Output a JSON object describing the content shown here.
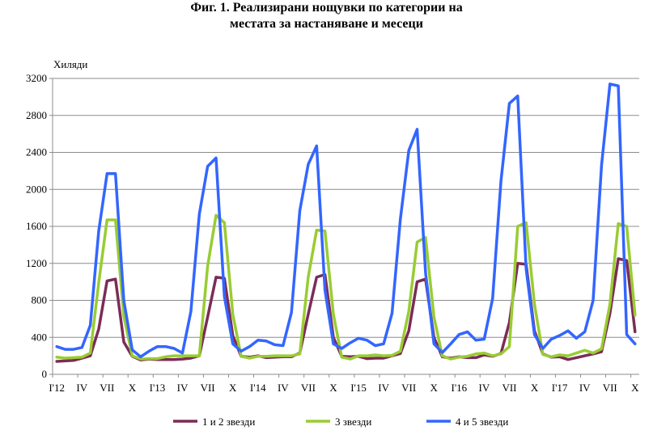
{
  "chart_data": {
    "type": "line",
    "title": "Фиг. 1. Реализирани нощувки по категории на",
    "subtitle": "местата за настаняване и месеци",
    "ylabel": "Хиляди",
    "xlabel": "",
    "ylim": [
      0,
      3200
    ],
    "yticks": [
      0,
      400,
      800,
      1200,
      1600,
      2000,
      2400,
      2800,
      3200
    ],
    "ytick_labels": [
      "0",
      "400",
      "800",
      "1200",
      "1600",
      "2000",
      "2400",
      "2800",
      "3200"
    ],
    "xtick_labels": [
      "I'12",
      "IV",
      "VII",
      "X",
      "I'13",
      "IV",
      "VII",
      "X",
      "I'14",
      "IV",
      "VII",
      "X",
      "I'15",
      "IV",
      "VII",
      "X",
      "I'16",
      "IV",
      "VII",
      "X",
      "I'17",
      "IV",
      "VII",
      "X"
    ],
    "x": [
      "I'12",
      "II'12",
      "III'12",
      "IV'12",
      "V'12",
      "VI'12",
      "VII'12",
      "VIII'12",
      "IX'12",
      "X'12",
      "XI'12",
      "XII'12",
      "I'13",
      "II'13",
      "III'13",
      "IV'13",
      "V'13",
      "VI'13",
      "VII'13",
      "VIII'13",
      "IX'13",
      "X'13",
      "XI'13",
      "XII'13",
      "I'14",
      "II'14",
      "III'14",
      "IV'14",
      "V'14",
      "VI'14",
      "VII'14",
      "VIII'14",
      "IX'14",
      "X'14",
      "XI'14",
      "XII'14",
      "I'15",
      "II'15",
      "III'15",
      "IV'15",
      "V'15",
      "VI'15",
      "VII'15",
      "VIII'15",
      "IX'15",
      "X'15",
      "XI'15",
      "XII'15",
      "I'16",
      "II'16",
      "III'16",
      "IV'16",
      "V'16",
      "VI'16",
      "VII'16",
      "VIII'16",
      "IX'16",
      "X'16",
      "XI'16",
      "XII'16",
      "I'17",
      "II'17",
      "III'17",
      "IV'17",
      "V'17",
      "VI'17",
      "VII'17",
      "VIII'17",
      "IX'17",
      "X'17"
    ],
    "grid": "horizontal",
    "legend_position": "bottom",
    "series": [
      {
        "name": "1 и 2 звезди",
        "color": "#7B2C57",
        "values": [
          140,
          145,
          150,
          175,
          200,
          490,
          1010,
          1030,
          350,
          195,
          155,
          165,
          160,
          160,
          160,
          165,
          175,
          200,
          620,
          1050,
          1040,
          420,
          195,
          185,
          200,
          180,
          185,
          190,
          190,
          230,
          650,
          1050,
          1080,
          400,
          195,
          190,
          195,
          170,
          175,
          175,
          200,
          225,
          470,
          1000,
          1030,
          400,
          190,
          175,
          190,
          180,
          180,
          210,
          195,
          225,
          560,
          1200,
          1190,
          470,
          220,
          185,
          190,
          160,
          180,
          200,
          220,
          245,
          660,
          1250,
          1230,
          460
        ]
      },
      {
        "name": "3 звезди",
        "color": "#99CC33",
        "values": [
          185,
          175,
          180,
          185,
          230,
          990,
          1670,
          1670,
          630,
          200,
          165,
          170,
          170,
          190,
          200,
          200,
          200,
          200,
          1170,
          1720,
          1640,
          650,
          195,
          175,
          195,
          195,
          200,
          200,
          200,
          220,
          1050,
          1560,
          1550,
          650,
          185,
          165,
          200,
          200,
          210,
          200,
          205,
          250,
          680,
          1430,
          1480,
          620,
          200,
          165,
          185,
          195,
          220,
          230,
          200,
          220,
          300,
          1600,
          1640,
          760,
          215,
          190,
          210,
          200,
          230,
          260,
          230,
          275,
          760,
          1630,
          1600,
          640
        ]
      },
      {
        "name": "4 и 5 звезди",
        "color": "#3366FF",
        "values": [
          300,
          270,
          270,
          290,
          530,
          1550,
          2170,
          2170,
          800,
          265,
          190,
          250,
          300,
          300,
          280,
          230,
          680,
          1730,
          2250,
          2340,
          840,
          330,
          250,
          300,
          370,
          360,
          320,
          310,
          670,
          1770,
          2270,
          2470,
          910,
          330,
          280,
          340,
          390,
          370,
          310,
          330,
          660,
          1680,
          2420,
          2650,
          1100,
          330,
          235,
          330,
          430,
          460,
          370,
          380,
          820,
          2090,
          2930,
          3010,
          1140,
          430,
          280,
          380,
          420,
          470,
          390,
          460,
          800,
          2260,
          3140,
          3120,
          430,
          330
        ]
      }
    ]
  }
}
